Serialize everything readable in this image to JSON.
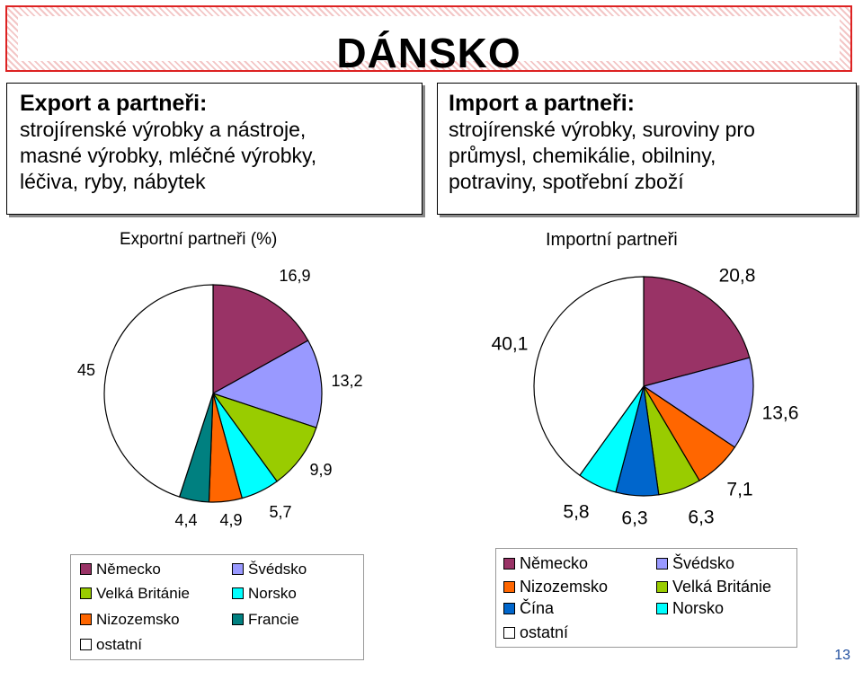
{
  "page_title": "DÁNSKO",
  "export_box": {
    "heading": "Export a partneři:",
    "lines": [
      "strojírenské výrobky a nástroje,",
      "masné výrobky, mléčné výrobky,",
      "léčiva, ryby, nábytek"
    ]
  },
  "import_box": {
    "heading": "Import a partneři:",
    "lines": [
      "strojírenské výrobky, suroviny pro",
      "průmysl, chemikálie, obilniny,",
      "potraviny, spotřební zboží"
    ]
  },
  "page_number": "13",
  "chart_data": [
    {
      "type": "pie",
      "title": "Exportní partneři (%)",
      "slices": [
        {
          "label": "Německo",
          "value": 16.9,
          "display": "16,9",
          "color": "#993366"
        },
        {
          "label": "Švédsko",
          "value": 13.2,
          "display": "13,2",
          "color": "#9999ff"
        },
        {
          "label": "Velká Británie",
          "value": 9.9,
          "display": "9,9",
          "color": "#99cc00"
        },
        {
          "label": "Norsko",
          "value": 5.7,
          "display": "5,7",
          "color": "#00ffff"
        },
        {
          "label": "Nizozemsko",
          "value": 4.9,
          "display": "4,9",
          "color": "#ff6600"
        },
        {
          "label": "Francie",
          "value": 4.4,
          "display": "4,4",
          "color": "#008080"
        },
        {
          "label": "ostatní",
          "value": 45,
          "display": "45",
          "color": "#ffffff"
        }
      ],
      "legend": [
        "Německo",
        "Švédsko",
        "Velká Británie",
        "Norsko",
        "Nizozemsko",
        "Francie",
        "ostatní"
      ]
    },
    {
      "type": "pie",
      "title": "Importní partneři",
      "slices": [
        {
          "label": "Německo",
          "value": 20.8,
          "display": "20,8",
          "color": "#993366"
        },
        {
          "label": "Švédsko",
          "value": 13.6,
          "display": "13,6",
          "color": "#9999ff"
        },
        {
          "label": "Nizozemsko",
          "value": 7.1,
          "display": "7,1",
          "color": "#ff6600"
        },
        {
          "label": "Velká Británie",
          "value": 6.3,
          "display": "6,3",
          "color": "#99cc00"
        },
        {
          "label": "Čína",
          "value": 6.3,
          "display": "6,3",
          "color": "#0066cc"
        },
        {
          "label": "Norsko",
          "value": 5.8,
          "display": "5,8",
          "color": "#00ffff"
        },
        {
          "label": "ostatní",
          "value": 40.1,
          "display": "40,1",
          "color": "#ffffff"
        }
      ],
      "legend": [
        "Německo",
        "Švédsko",
        "Nizozemsko",
        "Velká Británie",
        "Čína",
        "Norsko",
        "ostatní"
      ]
    }
  ]
}
